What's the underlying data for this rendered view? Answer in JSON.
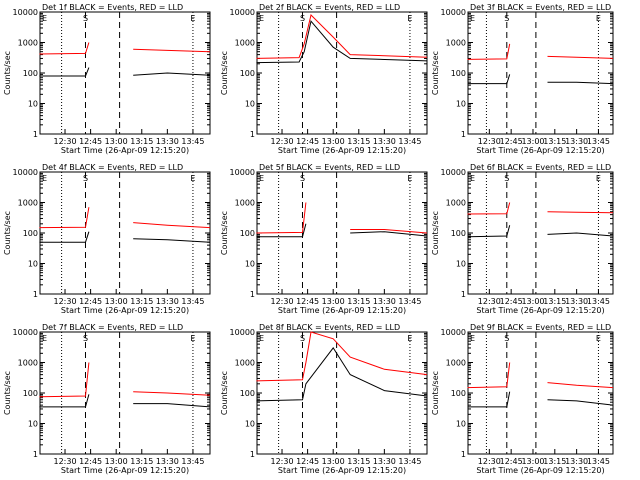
{
  "panel_xlabel": "Start Time (26-Apr-09 12:15:20)",
  "panel_ylabel": "Counts/sec",
  "legend_text": "BLACK = Events, RED = LLD",
  "colors": {
    "events": "#000000",
    "lld": "#ff0000",
    "background": "#ffffff"
  },
  "xtick_labels": [
    "12:30",
    "12:45",
    "13:00",
    "13:15",
    "13:30",
    "13:45"
  ],
  "ytick_labels": [
    "1",
    "10",
    "100",
    "1000",
    "10000"
  ],
  "markers": {
    "start": "E",
    "saa": "S",
    "end": "E"
  },
  "chart_data": [
    {
      "type": "line",
      "title": "Det 1f",
      "scale": "log",
      "ylim": [
        1,
        10000
      ],
      "xlim": [
        "12:15:20",
        "13:55"
      ],
      "series": [
        {
          "name": "Events",
          "x": [
            "12:15",
            "12:42",
            "12:44",
            "13:02",
            "13:10",
            "13:30",
            "13:55"
          ],
          "values": [
            80,
            80,
            150,
            null,
            85,
            100,
            85
          ]
        },
        {
          "name": "LLD",
          "x": [
            "12:15",
            "12:42",
            "12:44",
            "13:02",
            "13:10",
            "13:30",
            "13:55"
          ],
          "values": [
            420,
            440,
            1000,
            null,
            600,
            550,
            500
          ]
        }
      ]
    },
    {
      "type": "line",
      "title": "Det 2f",
      "scale": "log",
      "ylim": [
        1,
        10000
      ],
      "xlim": [
        "12:15:20",
        "13:55"
      ],
      "series": [
        {
          "name": "Events",
          "x": [
            "12:15",
            "12:40",
            "12:43",
            "12:47",
            "13:00",
            "13:10",
            "13:55"
          ],
          "values": [
            220,
            230,
            500,
            5000,
            700,
            300,
            250
          ]
        },
        {
          "name": "LLD",
          "x": [
            "12:15",
            "12:40",
            "12:43",
            "12:47",
            "13:00",
            "13:10",
            "13:55"
          ],
          "values": [
            300,
            320,
            900,
            8000,
            1500,
            400,
            330
          ]
        }
      ]
    },
    {
      "type": "line",
      "title": "Det 3f",
      "scale": "log",
      "ylim": [
        1,
        10000
      ],
      "xlim": [
        "12:15:20",
        "13:55"
      ],
      "series": [
        {
          "name": "Events",
          "x": [
            "12:15",
            "12:42",
            "12:44",
            "13:02",
            "13:10",
            "13:30",
            "13:55"
          ],
          "values": [
            45,
            45,
            90,
            null,
            50,
            50,
            45
          ]
        },
        {
          "name": "LLD",
          "x": [
            "12:15",
            "12:42",
            "12:44",
            "13:02",
            "13:10",
            "13:30",
            "13:55"
          ],
          "values": [
            280,
            290,
            900,
            null,
            350,
            330,
            300
          ]
        }
      ]
    },
    {
      "type": "line",
      "title": "Det 4f",
      "scale": "log",
      "ylim": [
        1,
        10000
      ],
      "xlim": [
        "12:15:20",
        "13:55"
      ],
      "series": [
        {
          "name": "Events",
          "x": [
            "12:15",
            "12:42",
            "12:44",
            "13:02",
            "13:10",
            "13:30",
            "13:55"
          ],
          "values": [
            50,
            50,
            110,
            null,
            65,
            60,
            50
          ]
        },
        {
          "name": "LLD",
          "x": [
            "12:15",
            "12:42",
            "12:44",
            "13:02",
            "13:10",
            "13:30",
            "13:55"
          ],
          "values": [
            150,
            155,
            700,
            null,
            220,
            180,
            150
          ]
        }
      ]
    },
    {
      "type": "line",
      "title": "Det 5f",
      "scale": "log",
      "ylim": [
        1,
        10000
      ],
      "xlim": [
        "12:15:20",
        "13:55"
      ],
      "series": [
        {
          "name": "Events",
          "x": [
            "12:15",
            "12:42",
            "12:44",
            "13:02",
            "13:10",
            "13:30",
            "13:55"
          ],
          "values": [
            75,
            75,
            200,
            null,
            100,
            110,
            80
          ]
        },
        {
          "name": "LLD",
          "x": [
            "12:15",
            "12:42",
            "12:44",
            "13:02",
            "13:10",
            "13:30",
            "13:55"
          ],
          "values": [
            100,
            105,
            1000,
            null,
            130,
            130,
            100
          ]
        }
      ]
    },
    {
      "type": "line",
      "title": "Det 6f",
      "scale": "log",
      "ylim": [
        1,
        10000
      ],
      "xlim": [
        "12:15:20",
        "13:55"
      ],
      "series": [
        {
          "name": "Events",
          "x": [
            "12:15",
            "12:42",
            "12:44",
            "13:02",
            "13:10",
            "13:30",
            "13:55"
          ],
          "values": [
            75,
            80,
            180,
            null,
            90,
            100,
            80
          ]
        },
        {
          "name": "LLD",
          "x": [
            "12:15",
            "12:42",
            "12:44",
            "13:02",
            "13:10",
            "13:30",
            "13:55"
          ],
          "values": [
            420,
            430,
            1000,
            null,
            500,
            480,
            460
          ]
        }
      ]
    },
    {
      "type": "line",
      "title": "Det 7f",
      "scale": "log",
      "ylim": [
        1,
        10000
      ],
      "xlim": [
        "12:15:20",
        "13:55"
      ],
      "series": [
        {
          "name": "Events",
          "x": [
            "12:15",
            "12:42",
            "12:44",
            "13:02",
            "13:10",
            "13:30",
            "13:55"
          ],
          "values": [
            35,
            35,
            90,
            null,
            45,
            45,
            35
          ]
        },
        {
          "name": "LLD",
          "x": [
            "12:15",
            "12:42",
            "12:44",
            "13:02",
            "13:10",
            "13:30",
            "13:55"
          ],
          "values": [
            75,
            80,
            1000,
            null,
            110,
            100,
            85
          ]
        }
      ]
    },
    {
      "type": "line",
      "title": "Det 8f",
      "scale": "log",
      "ylim": [
        1,
        10000
      ],
      "xlim": [
        "12:15:20",
        "13:55"
      ],
      "series": [
        {
          "name": "Events",
          "x": [
            "12:15",
            "12:42",
            "12:44",
            "13:00",
            "13:10",
            "13:30",
            "13:55"
          ],
          "values": [
            55,
            60,
            200,
            3000,
            400,
            120,
            80
          ]
        },
        {
          "name": "LLD",
          "x": [
            "12:15",
            "12:42",
            "12:44",
            "12:47",
            "13:00",
            "13:10",
            "13:30",
            "13:55"
          ],
          "values": [
            250,
            270,
            1000,
            10000,
            6000,
            1500,
            600,
            400
          ]
        }
      ]
    },
    {
      "type": "line",
      "title": "Det 9f",
      "scale": "log",
      "ylim": [
        1,
        10000
      ],
      "xlim": [
        "12:15:20",
        "13:55"
      ],
      "series": [
        {
          "name": "Events",
          "x": [
            "12:15",
            "12:42",
            "12:44",
            "13:02",
            "13:10",
            "13:30",
            "13:55"
          ],
          "values": [
            35,
            35,
            110,
            null,
            60,
            55,
            40
          ]
        },
        {
          "name": "LLD",
          "x": [
            "12:15",
            "12:42",
            "12:44",
            "13:02",
            "13:10",
            "13:30",
            "13:55"
          ],
          "values": [
            150,
            160,
            1000,
            null,
            220,
            180,
            150
          ]
        }
      ]
    }
  ]
}
